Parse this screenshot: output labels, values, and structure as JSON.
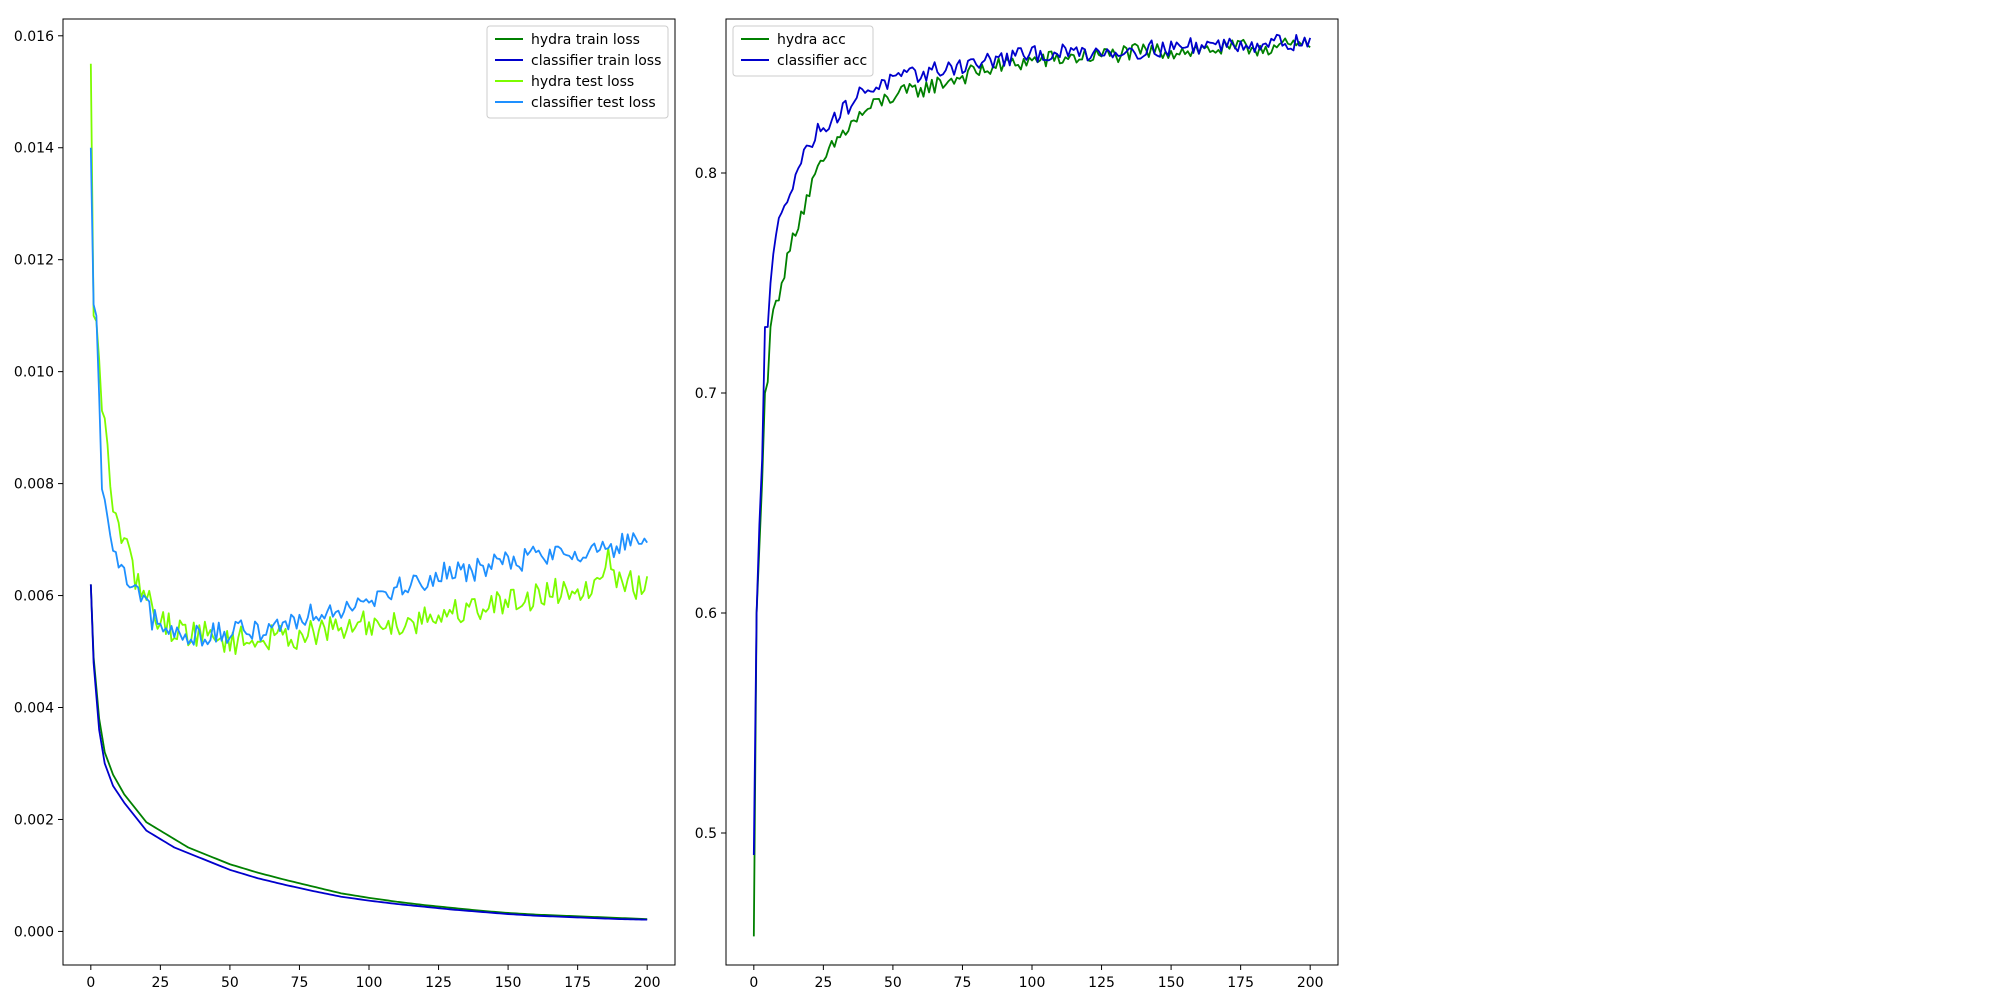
{
  "chart_data": [
    {
      "type": "line",
      "title": "",
      "xlabel": "",
      "ylabel": "",
      "xlim": [
        -10,
        210
      ],
      "ylim": [
        -0.0006,
        0.0163
      ],
      "xticks": [
        0,
        25,
        50,
        75,
        100,
        125,
        150,
        175,
        200
      ],
      "xtick_labels": [
        "0",
        "25",
        "50",
        "75",
        "100",
        "125",
        "150",
        "175",
        "200"
      ],
      "yticks": [
        0.0,
        0.002,
        0.004,
        0.006,
        0.008,
        0.01,
        0.012,
        0.014,
        0.016
      ],
      "ytick_labels": [
        "0.000",
        "0.002",
        "0.004",
        "0.006",
        "0.008",
        "0.010",
        "0.012",
        "0.014",
        "0.016"
      ],
      "grid": false,
      "legend": "top-right",
      "x_range": [
        0,
        200
      ],
      "series": [
        {
          "name": "hydra train loss",
          "color": "#008000",
          "noise": 0,
          "points": [
            [
              0,
              0.0062
            ],
            [
              1,
              0.0049
            ],
            [
              3,
              0.0038
            ],
            [
              5,
              0.0032
            ],
            [
              8,
              0.0028
            ],
            [
              12,
              0.00245
            ],
            [
              16,
              0.0022
            ],
            [
              20,
              0.00195
            ],
            [
              25,
              0.0018
            ],
            [
              30,
              0.00165
            ],
            [
              35,
              0.0015
            ],
            [
              40,
              0.0014
            ],
            [
              45,
              0.0013
            ],
            [
              50,
              0.0012
            ],
            [
              60,
              0.00105
            ],
            [
              70,
              0.00092
            ],
            [
              80,
              0.0008
            ],
            [
              90,
              0.00068
            ],
            [
              100,
              0.0006
            ],
            [
              110,
              0.00053
            ],
            [
              120,
              0.00047
            ],
            [
              130,
              0.00042
            ],
            [
              140,
              0.00037
            ],
            [
              150,
              0.00033
            ],
            [
              160,
              0.0003
            ],
            [
              170,
              0.00028
            ],
            [
              180,
              0.00026
            ],
            [
              190,
              0.00024
            ],
            [
              200,
              0.00022
            ]
          ]
        },
        {
          "name": "classifier train loss",
          "color": "#0000cc",
          "noise": 0,
          "points": [
            [
              0,
              0.0062
            ],
            [
              1,
              0.0048
            ],
            [
              3,
              0.0036
            ],
            [
              5,
              0.003
            ],
            [
              8,
              0.0026
            ],
            [
              12,
              0.0023
            ],
            [
              16,
              0.00205
            ],
            [
              20,
              0.0018
            ],
            [
              25,
              0.00165
            ],
            [
              30,
              0.0015
            ],
            [
              35,
              0.0014
            ],
            [
              40,
              0.0013
            ],
            [
              45,
              0.0012
            ],
            [
              50,
              0.0011
            ],
            [
              60,
              0.00095
            ],
            [
              70,
              0.00083
            ],
            [
              80,
              0.00072
            ],
            [
              90,
              0.00062
            ],
            [
              100,
              0.00055
            ],
            [
              110,
              0.00049
            ],
            [
              120,
              0.00044
            ],
            [
              130,
              0.00039
            ],
            [
              140,
              0.00035
            ],
            [
              150,
              0.00031
            ],
            [
              160,
              0.00028
            ],
            [
              170,
              0.00026
            ],
            [
              180,
              0.00024
            ],
            [
              190,
              0.00022
            ],
            [
              200,
              0.00021
            ]
          ]
        },
        {
          "name": "hydra test loss",
          "color": "#7cfc00",
          "noise": 0.00025,
          "points": [
            [
              0,
              0.0155
            ],
            [
              1,
              0.011
            ],
            [
              2,
              0.0109
            ],
            [
              4,
              0.0093
            ],
            [
              6,
              0.0087
            ],
            [
              8,
              0.0075
            ],
            [
              10,
              0.0073
            ],
            [
              14,
              0.0066
            ],
            [
              18,
              0.0061
            ],
            [
              22,
              0.0058
            ],
            [
              26,
              0.0055
            ],
            [
              30,
              0.0054
            ],
            [
              40,
              0.0053
            ],
            [
              50,
              0.0052
            ],
            [
              60,
              0.0052
            ],
            [
              75,
              0.0053
            ],
            [
              90,
              0.0054
            ],
            [
              100,
              0.0055
            ],
            [
              110,
              0.0055
            ],
            [
              120,
              0.0056
            ],
            [
              130,
              0.0057
            ],
            [
              140,
              0.0058
            ],
            [
              150,
              0.0059
            ],
            [
              160,
              0.006
            ],
            [
              170,
              0.0061
            ],
            [
              180,
              0.0062
            ],
            [
              186,
              0.0066
            ],
            [
              190,
              0.0063
            ],
            [
              200,
              0.0061
            ]
          ]
        },
        {
          "name": "classifier test loss",
          "color": "#1e90ff",
          "noise": 0.00022,
          "points": [
            [
              0,
              0.014
            ],
            [
              1,
              0.0112
            ],
            [
              2,
              0.011
            ],
            [
              4,
              0.0079
            ],
            [
              6,
              0.0074
            ],
            [
              8,
              0.0068
            ],
            [
              10,
              0.0065
            ],
            [
              14,
              0.0062
            ],
            [
              18,
              0.0059
            ],
            [
              22,
              0.0056
            ],
            [
              26,
              0.0054
            ],
            [
              30,
              0.0053
            ],
            [
              40,
              0.0053
            ],
            [
              50,
              0.0053
            ],
            [
              60,
              0.0054
            ],
            [
              70,
              0.0055
            ],
            [
              80,
              0.0057
            ],
            [
              90,
              0.0058
            ],
            [
              100,
              0.006
            ],
            [
              110,
              0.0061
            ],
            [
              120,
              0.0063
            ],
            [
              130,
              0.0064
            ],
            [
              140,
              0.0065
            ],
            [
              150,
              0.0066
            ],
            [
              160,
              0.0067
            ],
            [
              170,
              0.0068
            ],
            [
              180,
              0.0068
            ],
            [
              190,
              0.0069
            ],
            [
              200,
              0.0069
            ]
          ]
        }
      ]
    },
    {
      "type": "line",
      "title": "",
      "xlabel": "",
      "ylabel": "",
      "xlim": [
        -10,
        210
      ],
      "ylim": [
        0.44,
        0.87
      ],
      "xticks": [
        0,
        25,
        50,
        75,
        100,
        125,
        150,
        175,
        200
      ],
      "xtick_labels": [
        "0",
        "25",
        "50",
        "75",
        "100",
        "125",
        "150",
        "175",
        "200"
      ],
      "yticks": [
        0.5,
        0.6,
        0.7,
        0.8
      ],
      "ytick_labels": [
        "0.5",
        "0.6",
        "0.7",
        "0.8"
      ],
      "grid": false,
      "legend": "top-left",
      "x_range": [
        0,
        200
      ],
      "series": [
        {
          "name": "hydra acc",
          "color": "#008000",
          "noise": 0.004,
          "points": [
            [
              0,
              0.453
            ],
            [
              1,
              0.6
            ],
            [
              2,
              0.63
            ],
            [
              3,
              0.66
            ],
            [
              4,
              0.7
            ],
            [
              5,
              0.705
            ],
            [
              6,
              0.73
            ],
            [
              8,
              0.742
            ],
            [
              10,
              0.75
            ],
            [
              12,
              0.76
            ],
            [
              15,
              0.775
            ],
            [
              18,
              0.785
            ],
            [
              21,
              0.795
            ],
            [
              25,
              0.805
            ],
            [
              30,
              0.815
            ],
            [
              35,
              0.822
            ],
            [
              40,
              0.828
            ],
            [
              45,
              0.832
            ],
            [
              50,
              0.835
            ],
            [
              60,
              0.838
            ],
            [
              70,
              0.842
            ],
            [
              80,
              0.846
            ],
            [
              90,
              0.849
            ],
            [
              100,
              0.851
            ],
            [
              120,
              0.853
            ],
            [
              140,
              0.855
            ],
            [
              160,
              0.856
            ],
            [
              180,
              0.857
            ],
            [
              200,
              0.858
            ]
          ]
        },
        {
          "name": "classifier acc",
          "color": "#0000cc",
          "noise": 0.004,
          "points": [
            [
              0,
              0.49
            ],
            [
              1,
              0.6
            ],
            [
              2,
              0.64
            ],
            [
              3,
              0.67
            ],
            [
              4,
              0.73
            ],
            [
              5,
              0.73
            ],
            [
              6,
              0.75
            ],
            [
              8,
              0.772
            ],
            [
              10,
              0.782
            ],
            [
              12,
              0.79
            ],
            [
              15,
              0.8
            ],
            [
              18,
              0.808
            ],
            [
              21,
              0.815
            ],
            [
              25,
              0.822
            ],
            [
              30,
              0.826
            ],
            [
              35,
              0.832
            ],
            [
              40,
              0.838
            ],
            [
              45,
              0.84
            ],
            [
              50,
              0.842
            ],
            [
              60,
              0.845
            ],
            [
              70,
              0.848
            ],
            [
              80,
              0.85
            ],
            [
              90,
              0.852
            ],
            [
              100,
              0.854
            ],
            [
              120,
              0.855
            ],
            [
              140,
              0.856
            ],
            [
              160,
              0.858
            ],
            [
              180,
              0.859
            ],
            [
              200,
              0.86
            ]
          ]
        }
      ]
    }
  ]
}
